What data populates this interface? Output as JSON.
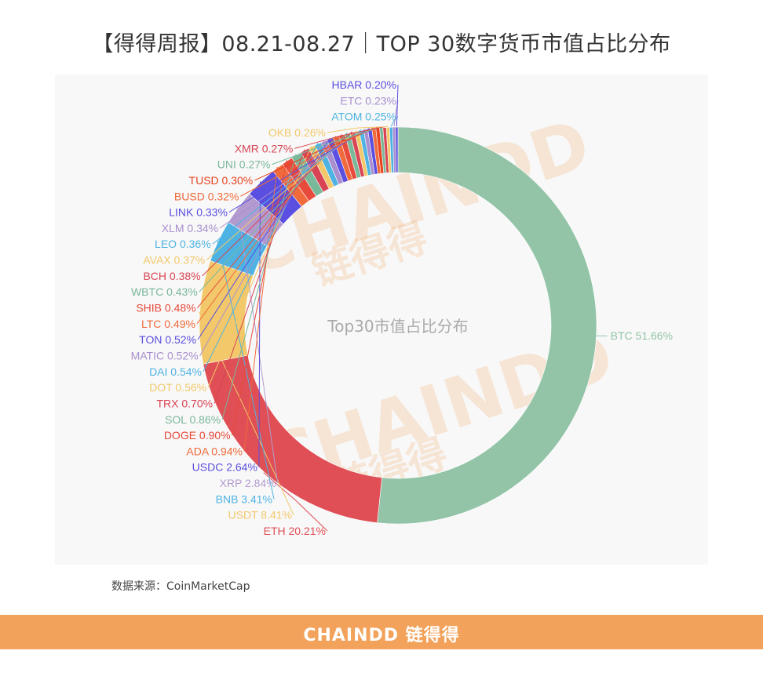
{
  "page": {
    "title": "【得得周报】08.21-08.27｜TOP 30数字货币市值占比分布",
    "source": "数据来源：CoinMarketCap",
    "footer_brand": "CHAINDD 链得得",
    "watermark_latin": "CHAINDD",
    "watermark_cjk": "链得得"
  },
  "chart_data": {
    "type": "pie",
    "variant": "donut",
    "center_label": "Top30市值占比分布",
    "label_format": "{name} {value}%",
    "slices": [
      {
        "name": "BTC",
        "value": 51.66,
        "color": "#93c4a8"
      },
      {
        "name": "ETH",
        "value": 20.21,
        "color": "#df4f55"
      },
      {
        "name": "USDT",
        "value": 8.41,
        "color": "#f2c86a"
      },
      {
        "name": "BNB",
        "value": 3.41,
        "color": "#4eb3e2"
      },
      {
        "name": "XRP",
        "value": 2.84,
        "color": "#b39bd0"
      },
      {
        "name": "USDC",
        "value": 2.64,
        "color": "#5a4fe0"
      },
      {
        "name": "ADA",
        "value": 0.94,
        "color": "#f06a3c"
      },
      {
        "name": "DOGE",
        "value": 0.9,
        "color": "#e84a3c"
      },
      {
        "name": "SOL",
        "value": 0.86,
        "color": "#7ab89a"
      },
      {
        "name": "TRX",
        "value": 0.7,
        "color": "#d94454"
      },
      {
        "name": "DOT",
        "value": 0.56,
        "color": "#f2c86a"
      },
      {
        "name": "DAI",
        "value": 0.54,
        "color": "#4eb3e2"
      },
      {
        "name": "MATIC",
        "value": 0.52,
        "color": "#a98fcf"
      },
      {
        "name": "TON",
        "value": 0.52,
        "color": "#5a4fe0"
      },
      {
        "name": "LTC",
        "value": 0.49,
        "color": "#f06a3c"
      },
      {
        "name": "SHIB",
        "value": 0.48,
        "color": "#e84a3c"
      },
      {
        "name": "WBTC",
        "value": 0.43,
        "color": "#7ab89a"
      },
      {
        "name": "BCH",
        "value": 0.38,
        "color": "#d94454"
      },
      {
        "name": "AVAX",
        "value": 0.37,
        "color": "#f2c86a"
      },
      {
        "name": "LEO",
        "value": 0.36,
        "color": "#4eb3e2"
      },
      {
        "name": "XLM",
        "value": 0.34,
        "color": "#a98fcf"
      },
      {
        "name": "LINK",
        "value": 0.33,
        "color": "#5a4fe0"
      },
      {
        "name": "BUSD",
        "value": 0.32,
        "color": "#f06a3c"
      },
      {
        "name": "TUSD",
        "value": 0.3,
        "color": "#e8421f"
      },
      {
        "name": "UNI",
        "value": 0.27,
        "color": "#7ab89a"
      },
      {
        "name": "XMR",
        "value": 0.27,
        "color": "#d94454"
      },
      {
        "name": "OKB",
        "value": 0.26,
        "color": "#f2c86a"
      },
      {
        "name": "ATOM",
        "value": 0.25,
        "color": "#4eb3e2"
      },
      {
        "name": "ETC",
        "value": 0.23,
        "color": "#a98fcf"
      },
      {
        "name": "HBAR",
        "value": 0.2,
        "color": "#5a4fe0"
      }
    ]
  }
}
